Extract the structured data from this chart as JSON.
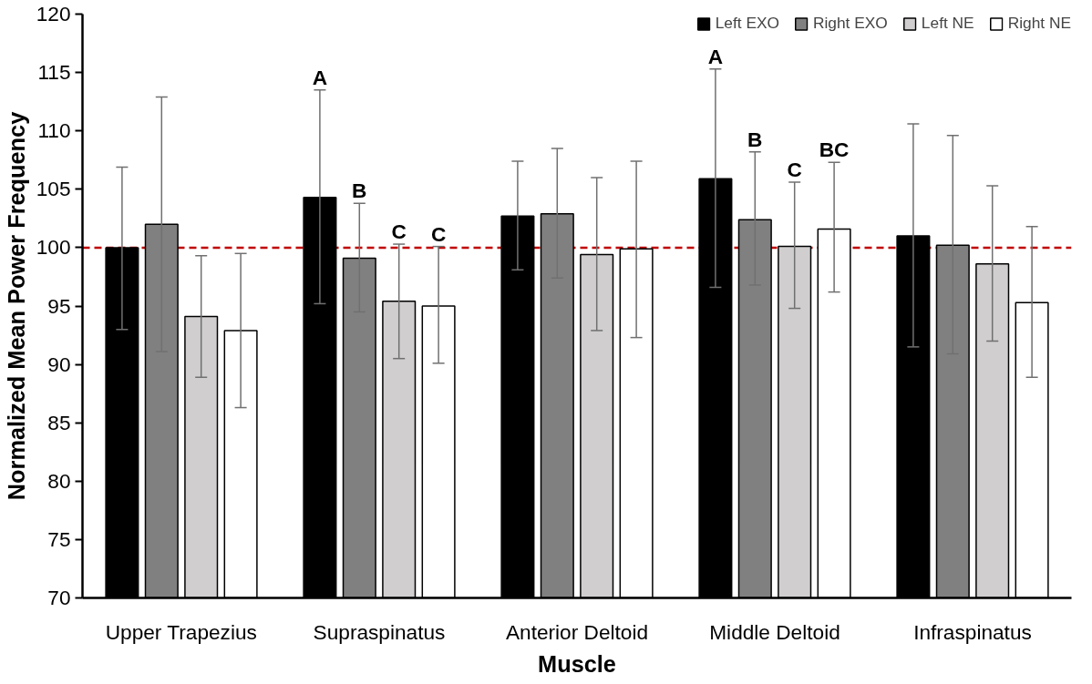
{
  "chart_data": {
    "type": "bar",
    "xlabel": "Muscle",
    "ylabel": "Normalized Mean Power Frequency",
    "categories": [
      "Upper Trapezius",
      "Supraspinatus",
      "Anterior Deltoid",
      "Middle Deltoid",
      "Infraspinatus"
    ],
    "series": [
      {
        "name": "Left EXO",
        "color": "#000000",
        "values": [
          100.0,
          104.3,
          102.7,
          105.9,
          101.0
        ],
        "errors": [
          [
            93.0,
            106.9
          ],
          [
            95.2,
            113.5
          ],
          [
            98.1,
            107.4
          ],
          [
            96.6,
            115.3
          ],
          [
            91.5,
            110.6
          ]
        ]
      },
      {
        "name": "Right EXO",
        "color": "#808080",
        "values": [
          102.0,
          99.1,
          102.9,
          102.4,
          100.2
        ],
        "errors": [
          [
            91.1,
            112.9
          ],
          [
            94.5,
            103.8
          ],
          [
            97.4,
            108.5
          ],
          [
            96.8,
            108.2
          ],
          [
            90.9,
            109.6
          ]
        ]
      },
      {
        "name": "Left NE",
        "color": "#d0cece",
        "values": [
          94.1,
          95.4,
          99.4,
          100.1,
          98.6
        ],
        "errors": [
          [
            88.9,
            99.3
          ],
          [
            90.5,
            100.3
          ],
          [
            92.9,
            106.0
          ],
          [
            94.8,
            105.6
          ],
          [
            92.0,
            105.3
          ]
        ]
      },
      {
        "name": "Right NE",
        "color": "#ffffff",
        "values": [
          92.9,
          95.0,
          99.9,
          101.6,
          95.3
        ],
        "errors": [
          [
            86.3,
            99.5
          ],
          [
            90.1,
            100.1
          ],
          [
            92.3,
            107.4
          ],
          [
            96.2,
            107.3
          ],
          [
            88.9,
            101.8
          ]
        ]
      }
    ],
    "ylim": [
      70,
      120
    ],
    "yticks": [
      70,
      75,
      80,
      85,
      90,
      95,
      100,
      105,
      110,
      115,
      120
    ],
    "ref_lines": [
      {
        "axis": "y",
        "value": 100,
        "color": "#c00000",
        "line_style": "dashed"
      }
    ],
    "annotations": [
      "A",
      "B",
      "C",
      "C",
      "A",
      "B",
      "C",
      "BC"
    ],
    "legend": "top right",
    "grid": false
  }
}
